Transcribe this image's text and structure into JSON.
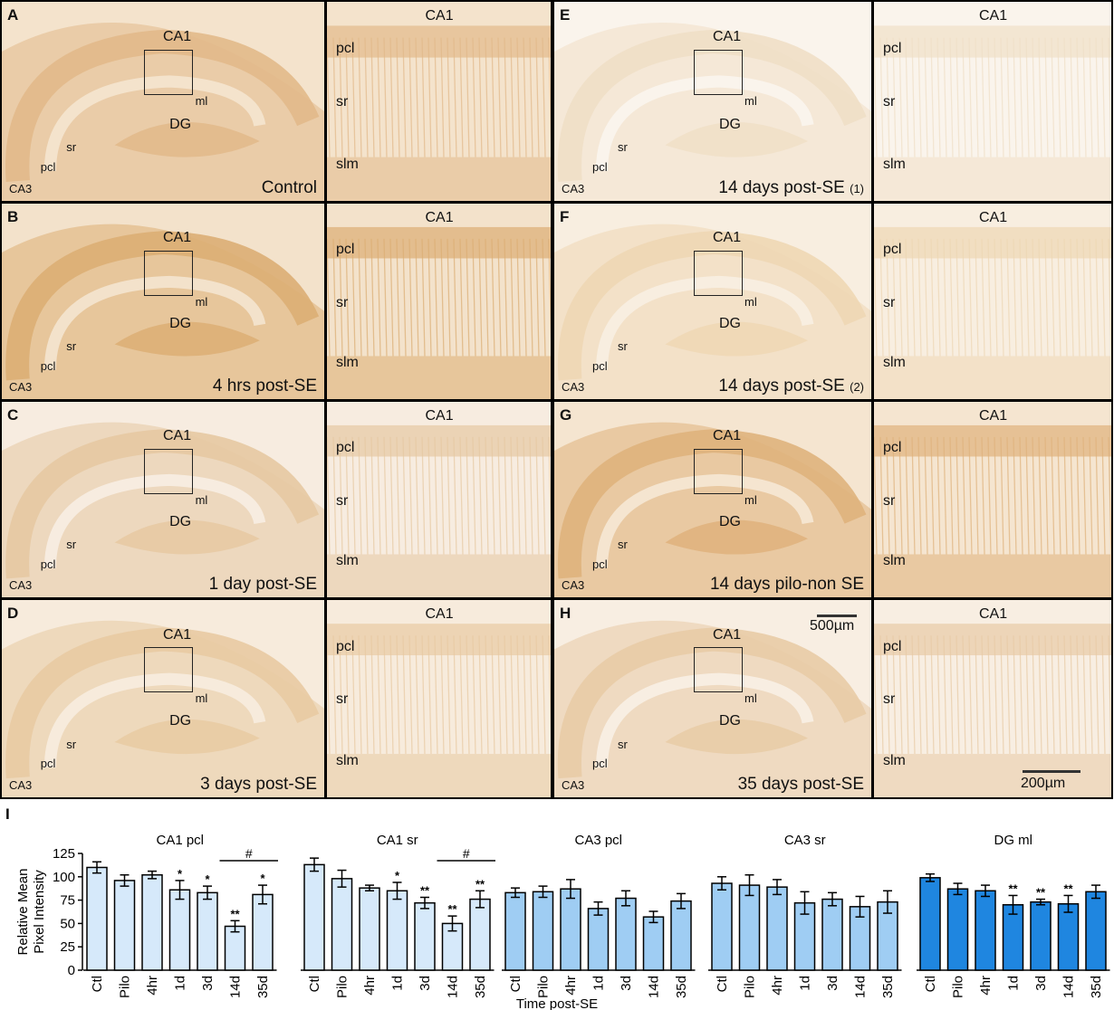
{
  "panels": [
    {
      "letter": "A",
      "condition": "Control",
      "cond_mark": "",
      "overview": {
        "ca1": "CA1",
        "dg": "DG",
        "ml": "ml",
        "sr": "sr",
        "pcl": "pcl",
        "ca3": "CA3"
      },
      "zoom": {
        "ca1": "CA1",
        "pcl": "pcl",
        "sr": "sr",
        "slm": "slm"
      },
      "bg": "#e2b98a",
      "bg2": "#f4e3cc"
    },
    {
      "letter": "B",
      "condition": "4 hrs post-SE",
      "cond_mark": "",
      "overview": {
        "ca1": "CA1",
        "dg": "DG",
        "ml": "ml",
        "sr": "sr",
        "pcl": "pcl",
        "ca3": "CA3"
      },
      "zoom": {
        "ca1": "CA1",
        "pcl": "pcl",
        "sr": "sr",
        "slm": "slm"
      },
      "bg": "#dcae74",
      "bg2": "#f3e2cb"
    },
    {
      "letter": "C",
      "condition": "1 day post-SE",
      "cond_mark": "",
      "overview": {
        "ca1": "CA1",
        "dg": "DG",
        "ml": "ml",
        "sr": "sr",
        "pcl": "pcl",
        "ca3": "CA3"
      },
      "zoom": {
        "ca1": "CA1",
        "pcl": "pcl",
        "sr": "sr",
        "slm": "slm"
      },
      "bg": "#e6c9a2",
      "bg2": "#f7ece0"
    },
    {
      "letter": "D",
      "condition": "3 days post-SE",
      "cond_mark": "",
      "overview": {
        "ca1": "CA1",
        "dg": "DG",
        "ml": "ml",
        "sr": "sr",
        "pcl": "pcl",
        "ca3": "CA3"
      },
      "zoom": {
        "ca1": "CA1",
        "pcl": "pcl",
        "sr": "sr",
        "slm": "slm"
      },
      "bg": "#e8caa2",
      "bg2": "#f7ebdc"
    },
    {
      "letter": "E",
      "condition": "14 days post-SE",
      "cond_mark": "(1)",
      "overview": {
        "ca1": "CA1",
        "dg": "DG",
        "ml": "ml",
        "sr": "sr",
        "pcl": "pcl",
        "ca3": "CA3"
      },
      "zoom": {
        "ca1": "CA1",
        "pcl": "pcl",
        "sr": "sr",
        "slm": "slm"
      },
      "bg": "#f0dfc7",
      "bg2": "#faf4ec"
    },
    {
      "letter": "F",
      "condition": "14 days post-SE",
      "cond_mark": "(2)",
      "overview": {
        "ca1": "CA1",
        "dg": "DG",
        "ml": "ml",
        "sr": "sr",
        "pcl": "pcl",
        "ca3": "CA3"
      },
      "zoom": {
        "ca1": "CA1",
        "pcl": "pcl",
        "sr": "sr",
        "slm": "slm"
      },
      "bg": "#eed7b4",
      "bg2": "#f8eee0"
    },
    {
      "letter": "G",
      "condition": "14 days pilo-non SE",
      "cond_mark": "",
      "overview": {
        "ca1": "CA1",
        "dg": "DG",
        "ml": "ml",
        "sr": "sr",
        "pcl": "pcl",
        "ca3": "CA3"
      },
      "zoom": {
        "ca1": "CA1",
        "pcl": "pcl",
        "sr": "sr",
        "slm": "slm"
      },
      "bg": "#dfb27c",
      "bg2": "#f5e5d0"
    },
    {
      "letter": "H",
      "condition": "35 days post-SE",
      "cond_mark": "",
      "overview": {
        "ca1": "CA1",
        "dg": "DG",
        "ml": "ml",
        "sr": "sr",
        "pcl": "pcl",
        "ca3": "CA3"
      },
      "zoom": {
        "ca1": "CA1",
        "pcl": "pcl",
        "sr": "sr",
        "slm": "slm"
      },
      "bg": "#e8cba6",
      "bg2": "#f8eee2"
    }
  ],
  "scalebars": {
    "overview": "500µm",
    "zoom": "200µm"
  },
  "chart_data": {
    "type": "bar",
    "panel_letter": "I",
    "ylabel": "Relative Mean Pixel Intensity",
    "ylabel_lines": [
      "Relative Mean",
      "Pixel Intensity"
    ],
    "xlabel": "Time post-SE",
    "ylim": [
      0,
      125
    ],
    "yticks": [
      0,
      25,
      50,
      75,
      100,
      125
    ],
    "categories": [
      "Ctl",
      "Pilo",
      "4hr",
      "1d",
      "3d",
      "14d",
      "35d"
    ],
    "groups": [
      {
        "name": "CA1 pcl",
        "color": "#d6e9fa",
        "values": [
          110,
          96,
          102,
          86,
          83,
          47,
          81
        ],
        "errors": [
          6,
          6,
          4,
          10,
          7,
          6,
          10
        ],
        "sig": [
          "",
          "",
          "",
          "*",
          "*",
          "**",
          "*"
        ],
        "hash": "#",
        "hash_span": [
          5,
          6
        ]
      },
      {
        "name": "CA1 sr",
        "color": "#d6e9fa",
        "values": [
          113,
          98,
          88,
          85,
          72,
          50,
          76
        ],
        "errors": [
          7,
          9,
          3,
          9,
          6,
          8,
          9
        ],
        "sig": [
          "",
          "",
          "",
          "*",
          "**",
          "**",
          "**"
        ],
        "hash": "#",
        "hash_span": [
          5,
          6
        ]
      },
      {
        "name": "CA3 pcl",
        "color": "#9fcdf3",
        "values": [
          83,
          84,
          87,
          66,
          77,
          57,
          74
        ],
        "errors": [
          5,
          6,
          10,
          7,
          8,
          6,
          8
        ],
        "sig": [
          "",
          "",
          "",
          "",
          "",
          "",
          ""
        ],
        "hash": "",
        "hash_span": []
      },
      {
        "name": "CA3 sr",
        "color": "#9fcdf3",
        "values": [
          93,
          91,
          89,
          72,
          76,
          68,
          73
        ],
        "errors": [
          7,
          11,
          8,
          12,
          7,
          11,
          12
        ],
        "sig": [
          "",
          "",
          "",
          "",
          "",
          "",
          ""
        ],
        "hash": "",
        "hash_span": []
      },
      {
        "name": "DG ml",
        "color": "#1f86e0",
        "values": [
          99,
          87,
          85,
          70,
          73,
          71,
          84
        ],
        "errors": [
          4,
          6,
          6,
          10,
          3,
          9,
          7
        ],
        "sig": [
          "",
          "",
          "",
          "**",
          "**",
          "**",
          ""
        ],
        "hash": "",
        "hash_span": []
      }
    ]
  }
}
